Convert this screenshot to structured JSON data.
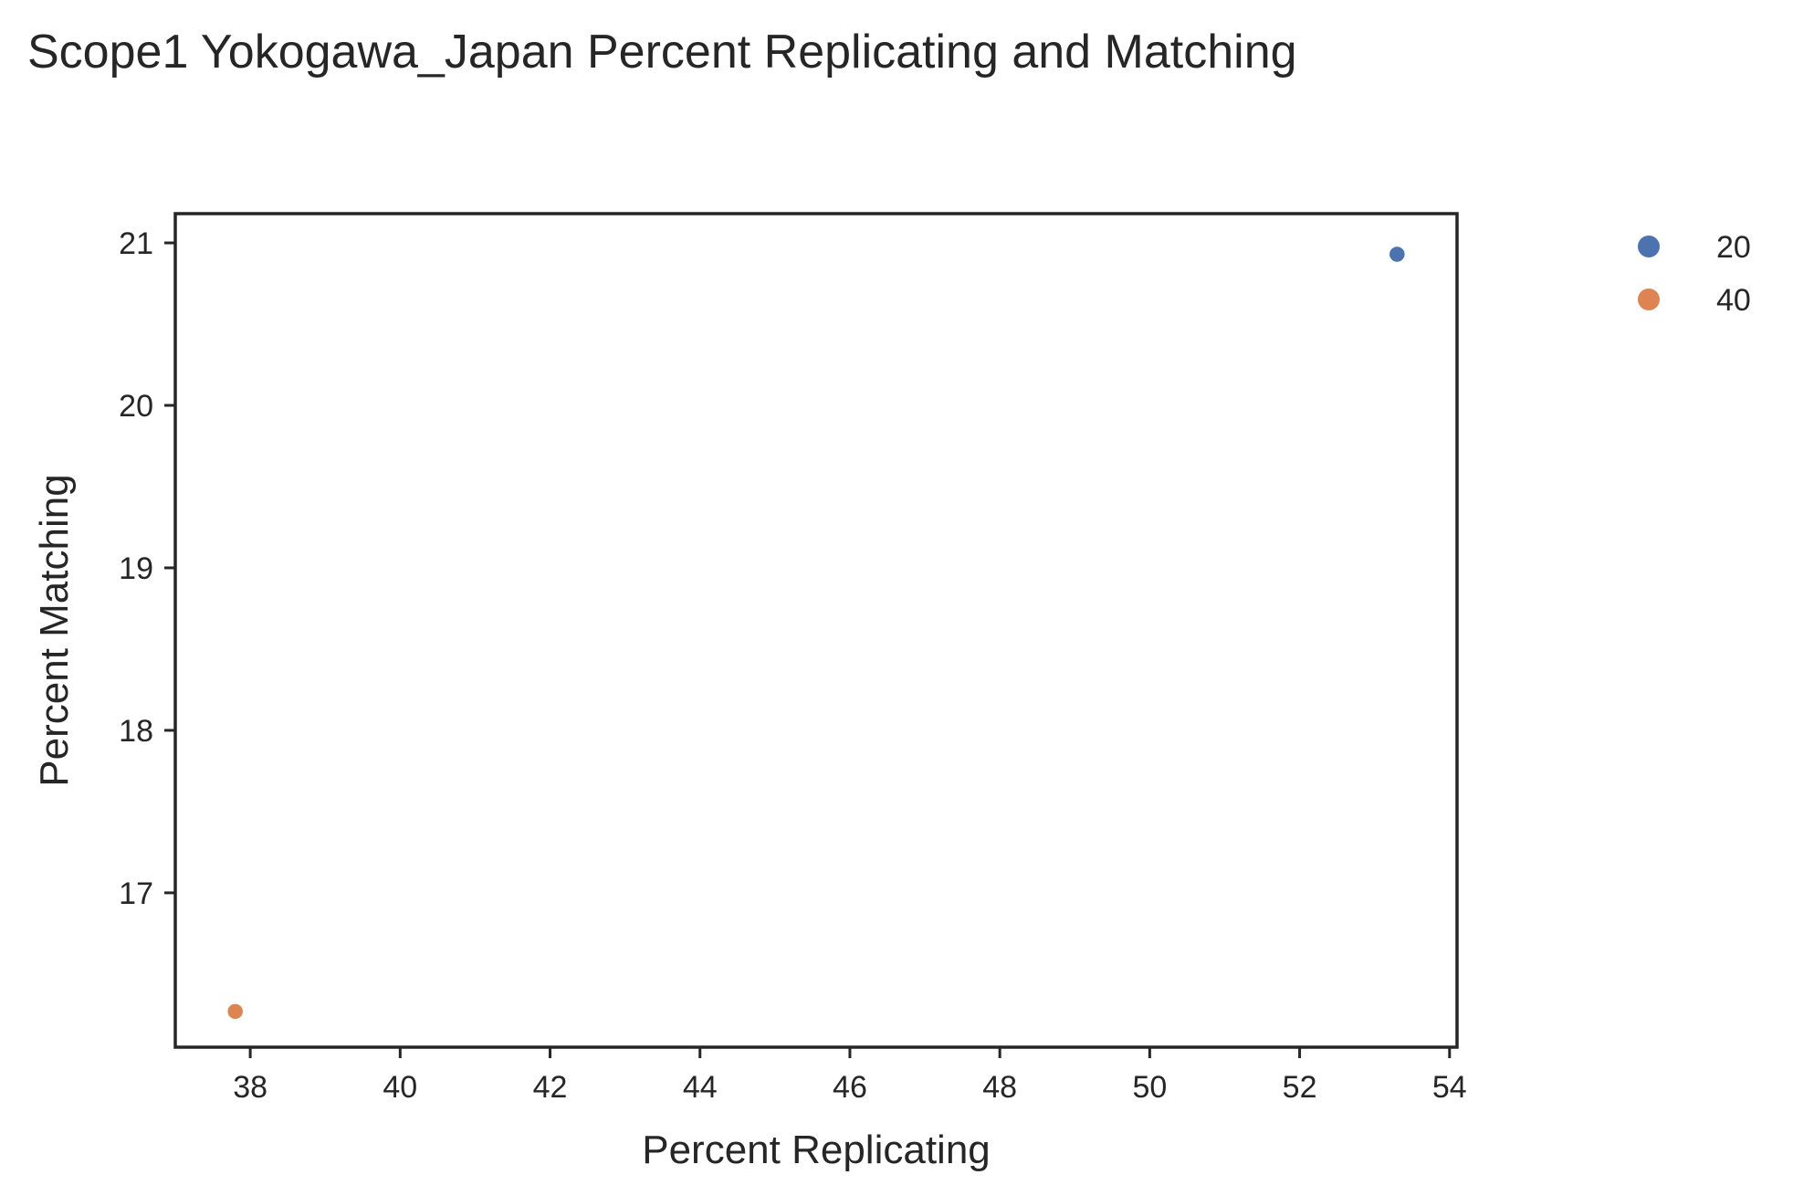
{
  "chart_data": {
    "type": "scatter",
    "title": "Scope1 Yokogawa_Japan Percent Replicating and Matching",
    "xlabel": "Percent Replicating",
    "ylabel": "Percent Matching",
    "xlim": [
      37.0,
      54.1
    ],
    "ylim": [
      16.05,
      21.18
    ],
    "xticks": [
      38,
      40,
      42,
      44,
      46,
      48,
      50,
      52,
      54
    ],
    "yticks": [
      17,
      18,
      19,
      20,
      21
    ],
    "grid": false,
    "legend": {
      "placement": "outside-right",
      "title": ""
    },
    "series": [
      {
        "name": "20",
        "color": "#4c72b0",
        "points": [
          {
            "x": 53.3,
            "y": 20.93
          }
        ]
      },
      {
        "name": "40",
        "color": "#dd8452",
        "points": [
          {
            "x": 37.8,
            "y": 16.27
          }
        ]
      }
    ]
  }
}
